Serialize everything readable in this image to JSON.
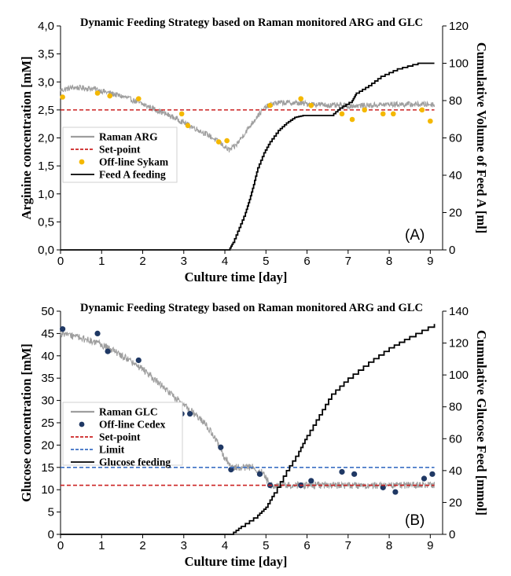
{
  "chart_data": [
    {
      "type": "line",
      "panel_label": "(A)",
      "title": "Dynamic Feeding Strategy based on Raman monitored ARG and GLC",
      "xlabel": "Culture time [day]",
      "ylabel": "Arginine concentration [mM]",
      "y2label": "Cumulative Volume of Feed A [ml]",
      "xlim": [
        0,
        9.3
      ],
      "ylim": [
        0,
        4.0
      ],
      "y2lim": [
        0,
        120
      ],
      "xticks": [
        "0",
        "1",
        "2",
        "3",
        "4",
        "5",
        "6",
        "7",
        "8",
        "9"
      ],
      "yticks": [
        "0,0",
        "0,5",
        "1,0",
        "1,5",
        "2,0",
        "2,5",
        "3,0",
        "3,5",
        "4,0"
      ],
      "y2ticks": [
        "0",
        "20",
        "40",
        "60",
        "80",
        "100",
        "120"
      ],
      "legend_position": "left",
      "series": [
        {
          "name": "Raman ARG",
          "kind": "noisy-line",
          "color": "#9e9e9e",
          "axis": "left",
          "noise": 0.05,
          "x": [
            0,
            0.3,
            0.8,
            1.2,
            1.6,
            2.0,
            2.4,
            2.8,
            3.2,
            3.6,
            3.9,
            4.1,
            4.25,
            4.5,
            4.8,
            5.0,
            5.2,
            5.4,
            5.8,
            6.2,
            6.6,
            7.0,
            7.5,
            8.0,
            8.5,
            9.1
          ],
          "y": [
            2.85,
            2.9,
            2.88,
            2.8,
            2.72,
            2.6,
            2.48,
            2.35,
            2.2,
            2.05,
            1.9,
            1.78,
            1.85,
            2.1,
            2.4,
            2.55,
            2.62,
            2.63,
            2.62,
            2.6,
            2.58,
            2.57,
            2.58,
            2.6,
            2.6,
            2.6
          ]
        },
        {
          "name": "Set-point",
          "kind": "dashed-line",
          "color": "#cc2222",
          "axis": "left",
          "x": [
            0,
            9.1
          ],
          "y": [
            2.5,
            2.5
          ]
        },
        {
          "name": "Off-line Sykam",
          "kind": "points",
          "color": "#f4b800",
          "axis": "left",
          "x": [
            0.05,
            0.9,
            1.2,
            1.9,
            2.95,
            3.1,
            3.85,
            4.05,
            5.1,
            5.85,
            6.1,
            6.85,
            7.1,
            7.4,
            7.85,
            8.1,
            8.8,
            9.0
          ],
          "y": [
            2.73,
            2.8,
            2.75,
            2.7,
            2.43,
            2.22,
            1.93,
            1.95,
            2.58,
            2.7,
            2.58,
            2.43,
            2.33,
            2.5,
            2.43,
            2.43,
            2.5,
            2.3
          ]
        },
        {
          "name": "Feed A feeding",
          "kind": "line",
          "color": "#000000",
          "axis": "right",
          "x": [
            0,
            4.1,
            4.2,
            4.35,
            4.5,
            4.6,
            4.7,
            4.8,
            4.95,
            5.1,
            5.3,
            5.5,
            5.7,
            5.9,
            6.2,
            6.6,
            6.8,
            7.1,
            7.2,
            7.5,
            7.8,
            8.2,
            8.7,
            9.1
          ],
          "y": [
            0,
            0,
            4,
            12,
            20,
            27,
            35,
            44,
            52,
            58,
            64,
            68,
            71,
            72,
            72,
            72,
            76,
            80,
            84,
            88,
            93,
            97,
            100,
            100
          ]
        }
      ]
    },
    {
      "type": "line",
      "panel_label": "(B)",
      "title": "Dynamic Feeding Strategy based on Raman monitored ARG and GLC",
      "xlabel": "Culture time [day]",
      "ylabel": "Glucose concentration [mM]",
      "y2label": "Cumulative Glucose Feed [mmol]",
      "xlim": [
        0,
        9.3
      ],
      "ylim": [
        0,
        50
      ],
      "y2lim": [
        0,
        140
      ],
      "xticks": [
        "0",
        "1",
        "2",
        "3",
        "4",
        "5",
        "6",
        "7",
        "8",
        "9"
      ],
      "yticks": [
        "0",
        "5",
        "10",
        "15",
        "20",
        "25",
        "30",
        "35",
        "40",
        "45",
        "50"
      ],
      "y2ticks": [
        "0",
        "20",
        "40",
        "60",
        "80",
        "100",
        "120",
        "140"
      ],
      "legend_position": "left",
      "series": [
        {
          "name": "Raman GLC",
          "kind": "noisy-line",
          "color": "#9e9e9e",
          "axis": "left",
          "noise": 0.8,
          "x": [
            0,
            0.5,
            1.0,
            1.5,
            2.0,
            2.5,
            3.0,
            3.2,
            3.5,
            3.8,
            4.0,
            4.2,
            4.4,
            4.7,
            4.9,
            5.1,
            5.5,
            6.0,
            7.0,
            8.0,
            9.1
          ],
          "y": [
            45,
            44,
            42.5,
            40,
            37,
            33,
            29,
            27.5,
            25,
            21,
            17,
            15,
            15,
            15,
            14,
            11,
            11,
            11,
            11,
            11,
            11
          ]
        },
        {
          "name": "Off-line Cedex",
          "kind": "points",
          "color": "#1f3864",
          "axis": "left",
          "x": [
            0.05,
            0.9,
            1.15,
            1.9,
            2.95,
            3.15,
            3.9,
            4.15,
            4.85,
            5.1,
            5.85,
            6.1,
            6.85,
            7.15,
            7.85,
            8.15,
            8.85,
            9.05
          ],
          "y": [
            46,
            45,
            41,
            39,
            27,
            27,
            19.5,
            14.5,
            13.5,
            11,
            11,
            12,
            14,
            13.5,
            10.5,
            9.5,
            12.5,
            13.5
          ]
        },
        {
          "name": "Set-point",
          "kind": "dashed-line",
          "color": "#cc2222",
          "axis": "left",
          "x": [
            0,
            9.1
          ],
          "y": [
            11,
            11
          ]
        },
        {
          "name": "Limit",
          "kind": "dashed-line",
          "color": "#3a6fc4",
          "axis": "left",
          "x": [
            0,
            9.1
          ],
          "y": [
            15,
            15
          ]
        },
        {
          "name": "Glucose feeding",
          "kind": "line",
          "color": "#000000",
          "axis": "right",
          "x": [
            0,
            4.15,
            4.4,
            4.8,
            5.0,
            5.2,
            5.5,
            5.8,
            6.0,
            6.3,
            6.6,
            7.0,
            7.5,
            8.0,
            8.5,
            9.1
          ],
          "y": [
            0,
            0,
            5,
            12,
            17,
            26,
            40,
            52,
            62,
            75,
            88,
            98,
            108,
            117,
            124,
            132
          ]
        }
      ]
    }
  ]
}
